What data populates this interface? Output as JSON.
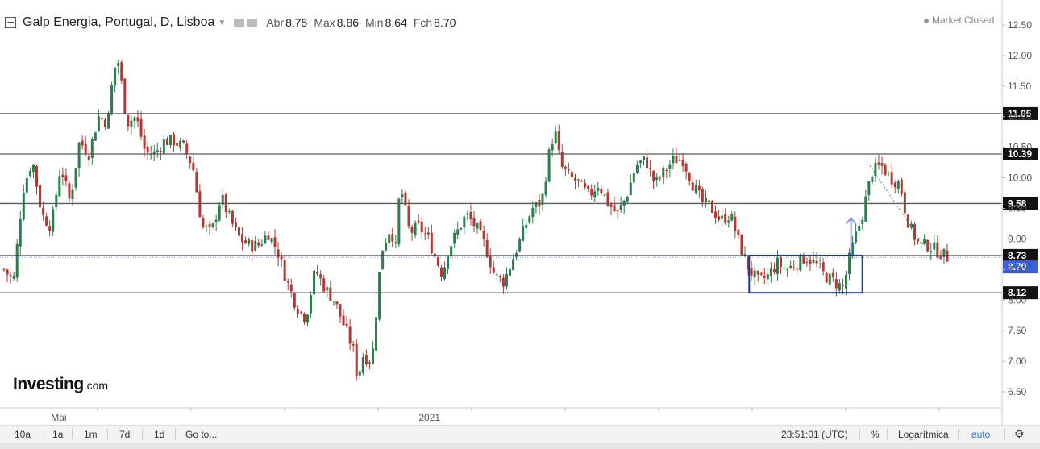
{
  "header": {
    "title": "Galp Energia, Portugal, D, Lisboa",
    "ohlc": [
      {
        "label": "Abr",
        "value": "8.75"
      },
      {
        "label": "Max",
        "value": "8.86"
      },
      {
        "label": "Min",
        "value": "8.64"
      },
      {
        "label": "Fch",
        "value": "8.70"
      }
    ]
  },
  "status": "Market Closed",
  "logo": {
    "main": "Investing",
    "suffix": ".com"
  },
  "toolbar": {
    "ranges": [
      "10a",
      "1a",
      "1m",
      "7d",
      "1d"
    ],
    "goto": "Go to...",
    "time": "23:51:01 (UTC)",
    "percent": "%",
    "log": "Logarítmica",
    "auto": "auto"
  },
  "colors": {
    "up": "#2e7d4f",
    "down": "#b03a32",
    "box": "#1f3d8a",
    "arrow": "#8b9fd6",
    "last_price_bg": "#3d5fd6"
  },
  "chart_data": {
    "type": "candlestick",
    "ylim": [
      6.25,
      12.75
    ],
    "y_ticks": [
      "12.50",
      "12.00",
      "11.50",
      "11.00",
      "10.50",
      "10.00",
      "9.50",
      "9.00",
      "8.50",
      "8.00",
      "7.50",
      "7.00",
      "6.50"
    ],
    "x_labels": [
      {
        "label": "Mai",
        "t": 0.058
      },
      {
        "label": "2021",
        "t": 0.451
      }
    ],
    "horizontal_levels": [
      {
        "value": 11.05,
        "label": "11.05"
      },
      {
        "value": 10.39,
        "label": "10.39"
      },
      {
        "value": 9.58,
        "label": "9.58"
      },
      {
        "value": 8.73,
        "label": "8.73"
      },
      {
        "value": 8.12,
        "label": "8.12"
      }
    ],
    "last_price": {
      "value": 8.7,
      "label": "8.70"
    },
    "close_path": [
      [
        0.0,
        8.5
      ],
      [
        0.01,
        8.3
      ],
      [
        0.02,
        9.8
      ],
      [
        0.03,
        10.3
      ],
      [
        0.04,
        9.4
      ],
      [
        0.05,
        9.2
      ],
      [
        0.06,
        10.2
      ],
      [
        0.07,
        9.6
      ],
      [
        0.08,
        10.6
      ],
      [
        0.09,
        10.4
      ],
      [
        0.1,
        11.0
      ],
      [
        0.11,
        10.9
      ],
      [
        0.115,
        11.6
      ],
      [
        0.12,
        12.0
      ],
      [
        0.125,
        11.5
      ],
      [
        0.13,
        10.9
      ],
      [
        0.14,
        11.0
      ],
      [
        0.15,
        10.4
      ],
      [
        0.16,
        10.4
      ],
      [
        0.17,
        10.6
      ],
      [
        0.18,
        10.6
      ],
      [
        0.19,
        10.5
      ],
      [
        0.2,
        10.2
      ],
      [
        0.205,
        9.7
      ],
      [
        0.21,
        9.2
      ],
      [
        0.22,
        9.1
      ],
      [
        0.23,
        9.7
      ],
      [
        0.24,
        9.3
      ],
      [
        0.25,
        9.0
      ],
      [
        0.26,
        8.9
      ],
      [
        0.27,
        8.9
      ],
      [
        0.28,
        9.1
      ],
      [
        0.29,
        8.8
      ],
      [
        0.3,
        8.3
      ],
      [
        0.31,
        7.9
      ],
      [
        0.32,
        7.7
      ],
      [
        0.33,
        8.5
      ],
      [
        0.34,
        8.2
      ],
      [
        0.35,
        8.0
      ],
      [
        0.36,
        7.6
      ],
      [
        0.37,
        7.2
      ],
      [
        0.375,
        6.7
      ],
      [
        0.38,
        7.1
      ],
      [
        0.39,
        7.0
      ],
      [
        0.395,
        7.9
      ],
      [
        0.4,
        8.8
      ],
      [
        0.41,
        9.2
      ],
      [
        0.415,
        8.8
      ],
      [
        0.42,
        9.9
      ],
      [
        0.43,
        9.1
      ],
      [
        0.44,
        9.2
      ],
      [
        0.45,
        9.0
      ],
      [
        0.46,
        8.6
      ],
      [
        0.465,
        8.4
      ],
      [
        0.47,
        8.8
      ],
      [
        0.48,
        9.1
      ],
      [
        0.49,
        9.4
      ],
      [
        0.5,
        9.2
      ],
      [
        0.51,
        8.9
      ],
      [
        0.52,
        8.4
      ],
      [
        0.53,
        8.3
      ],
      [
        0.54,
        8.7
      ],
      [
        0.55,
        9.1
      ],
      [
        0.56,
        9.5
      ],
      [
        0.57,
        9.6
      ],
      [
        0.58,
        10.6
      ],
      [
        0.585,
        10.7
      ],
      [
        0.59,
        10.2
      ],
      [
        0.6,
        10.0
      ],
      [
        0.61,
        9.9
      ],
      [
        0.62,
        9.7
      ],
      [
        0.63,
        9.9
      ],
      [
        0.64,
        9.6
      ],
      [
        0.65,
        9.4
      ],
      [
        0.66,
        9.7
      ],
      [
        0.67,
        10.2
      ],
      [
        0.68,
        10.3
      ],
      [
        0.69,
        9.9
      ],
      [
        0.7,
        10.1
      ],
      [
        0.71,
        10.3
      ],
      [
        0.72,
        10.3
      ],
      [
        0.73,
        9.9
      ],
      [
        0.74,
        9.6
      ],
      [
        0.75,
        9.5
      ],
      [
        0.76,
        9.3
      ],
      [
        0.77,
        9.4
      ],
      [
        0.78,
        8.9
      ],
      [
        0.79,
        8.5
      ],
      [
        0.8,
        8.3
      ],
      [
        0.81,
        8.4
      ],
      [
        0.82,
        8.6
      ],
      [
        0.83,
        8.5
      ],
      [
        0.84,
        8.6
      ],
      [
        0.85,
        8.7
      ],
      [
        0.86,
        8.6
      ],
      [
        0.87,
        8.4
      ],
      [
        0.88,
        8.3
      ],
      [
        0.89,
        8.2
      ],
      [
        0.895,
        8.6
      ],
      [
        0.9,
        8.9
      ],
      [
        0.91,
        9.4
      ],
      [
        0.92,
        10.1
      ],
      [
        0.93,
        10.2
      ],
      [
        0.94,
        10.0
      ],
      [
        0.95,
        9.9
      ],
      [
        0.955,
        9.5
      ],
      [
        0.96,
        9.2
      ],
      [
        0.97,
        8.9
      ],
      [
        0.98,
        8.9
      ],
      [
        0.99,
        8.8
      ],
      [
        1.0,
        8.7
      ]
    ],
    "annotations": {
      "box": {
        "t0": 0.79,
        "t1": 0.91,
        "y_bottom": 8.12,
        "y_top": 8.73
      },
      "arrow": {
        "t": 0.898,
        "y_from": 8.75,
        "y_to": 9.34
      },
      "dotted_line": [
        [
          0.918,
          10.2
        ],
        [
          0.975,
          8.9
        ]
      ]
    }
  }
}
